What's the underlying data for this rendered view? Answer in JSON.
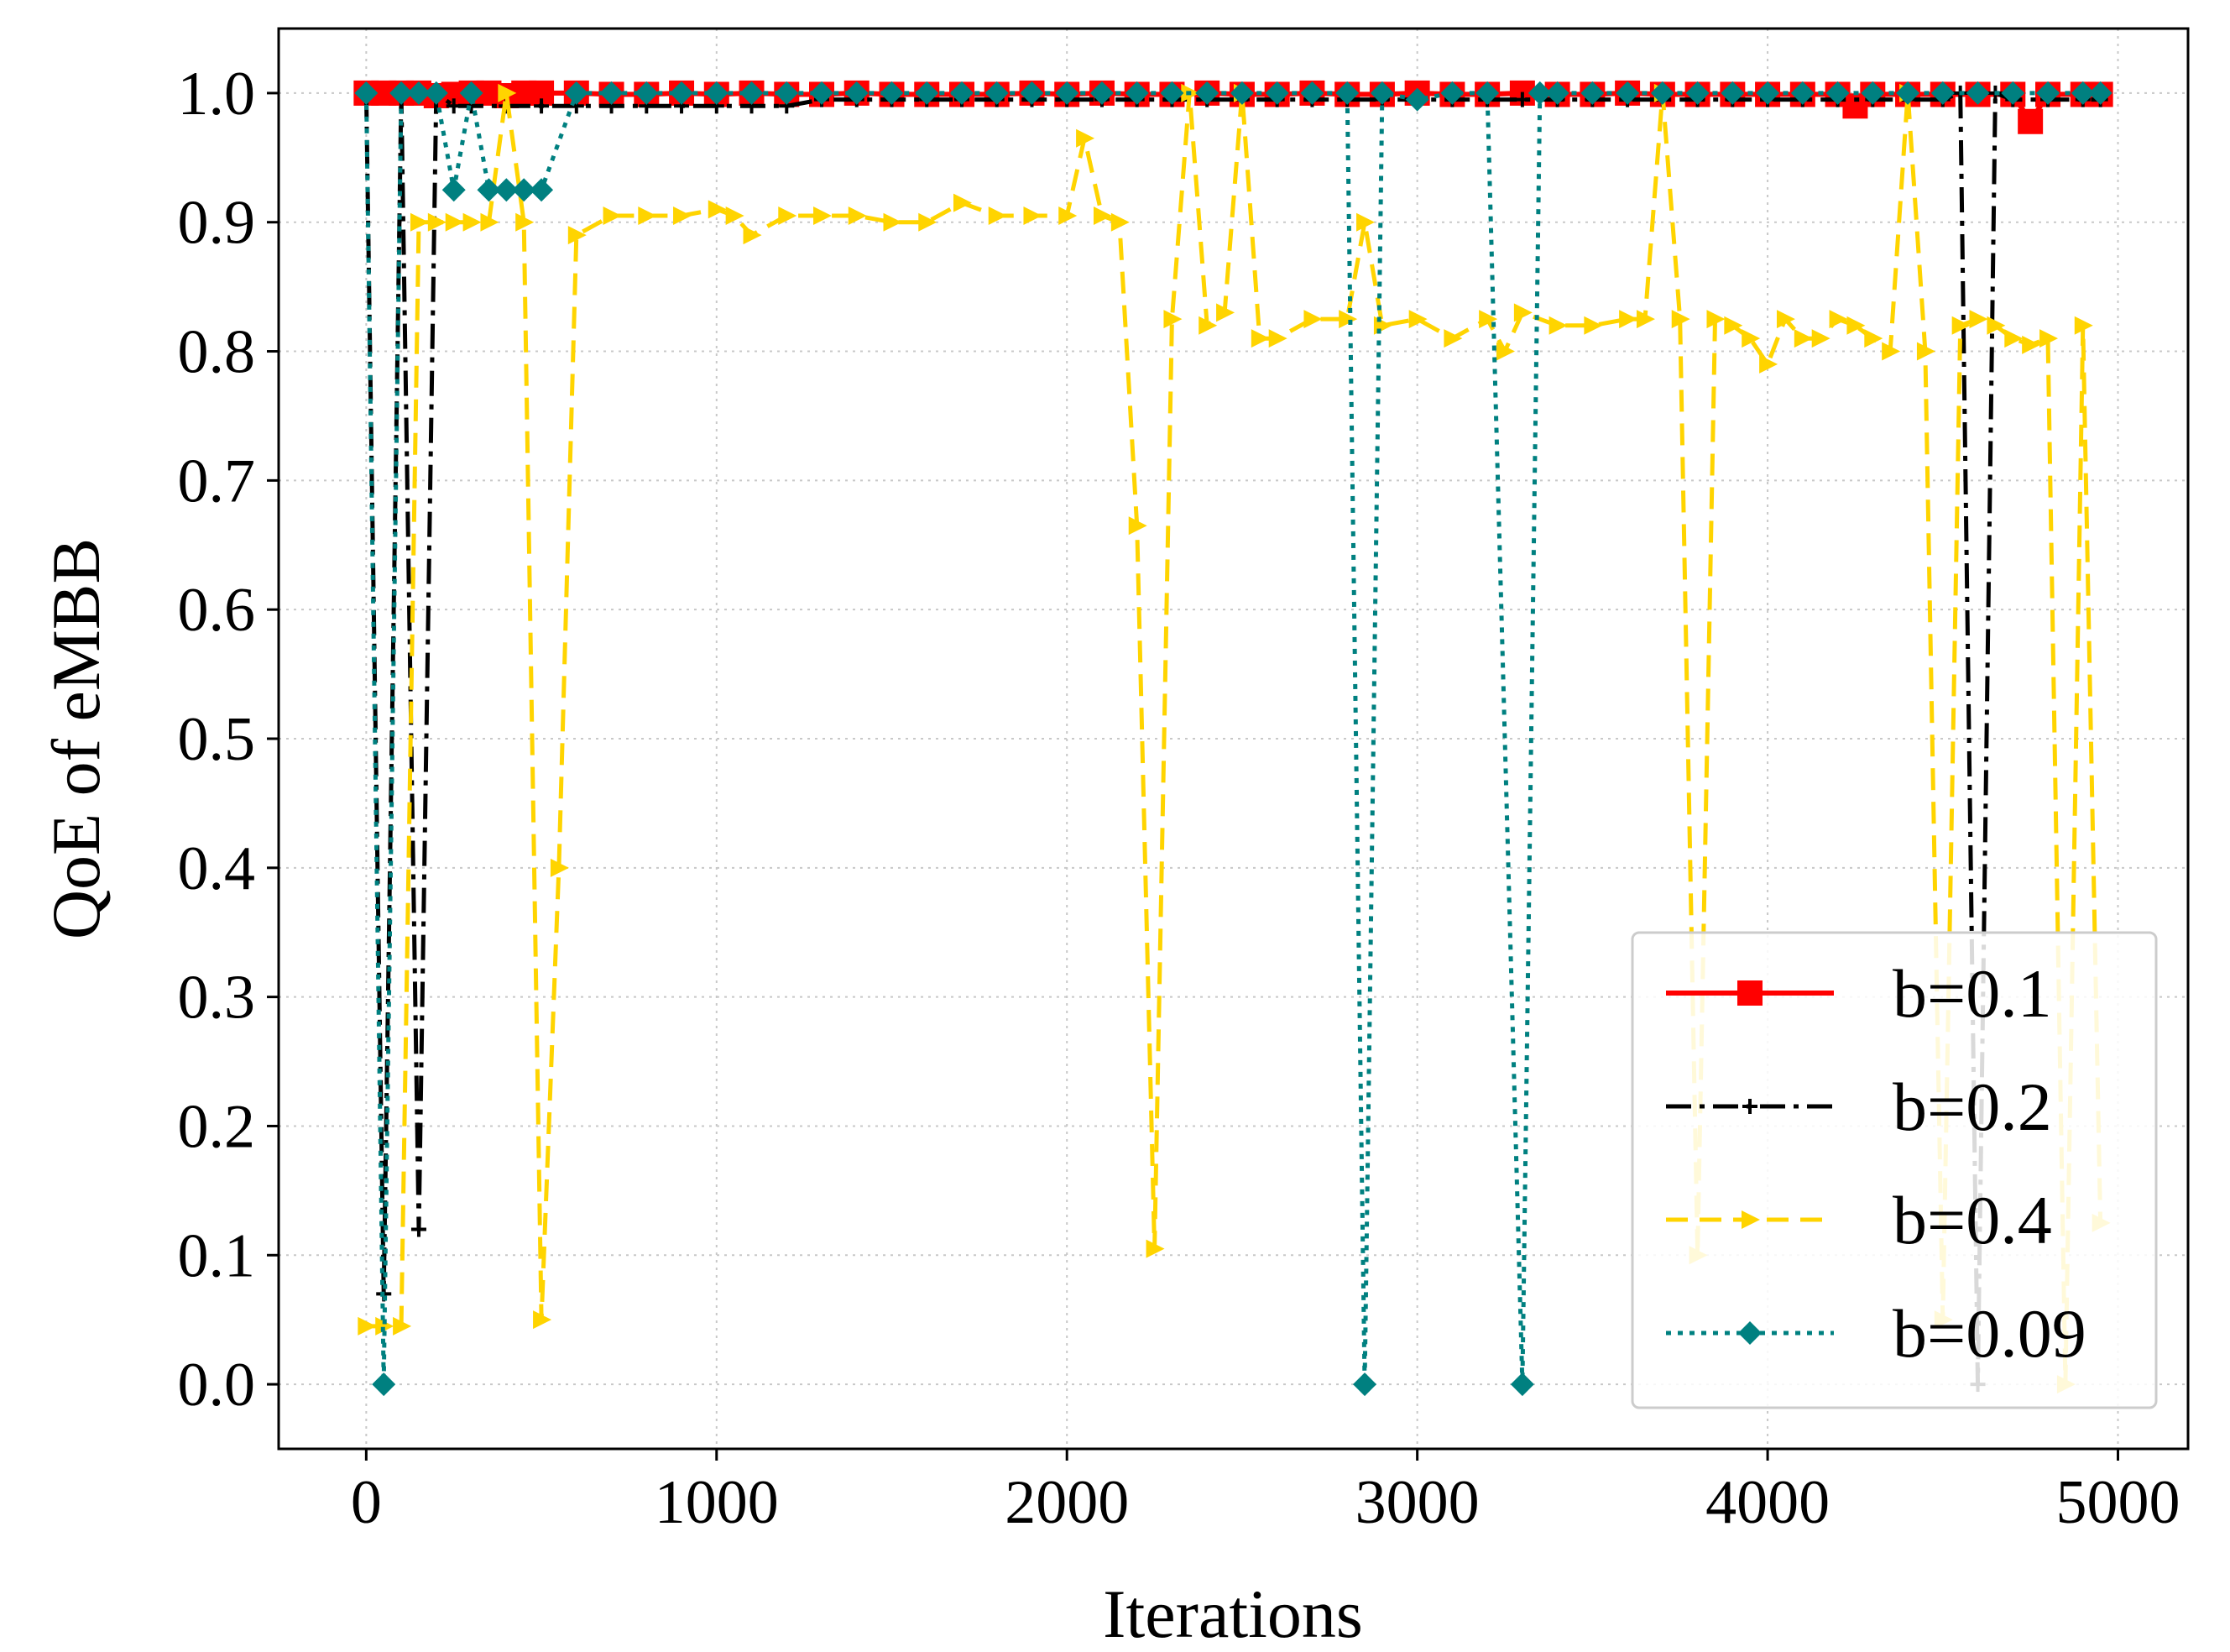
{
  "chart_data": {
    "type": "line",
    "title": "",
    "xlabel": "Iterations",
    "ylabel": "QoE of eMBB",
    "xlim": [
      -250,
      5200
    ],
    "ylim": [
      -0.05,
      1.05
    ],
    "xticks": [
      0,
      1000,
      2000,
      3000,
      4000,
      5000
    ],
    "xtick_labels": [
      "0",
      "1000",
      "2000",
      "3000",
      "4000",
      "5000"
    ],
    "yticks": [
      0.0,
      0.1,
      0.2,
      0.3,
      0.4,
      0.5,
      0.6,
      0.7,
      0.8,
      0.9,
      1.0
    ],
    "ytick_labels": [
      "0.0",
      "0.1",
      "0.2",
      "0.3",
      "0.4",
      "0.5",
      "0.6",
      "0.7",
      "0.8",
      "0.9",
      "1.0"
    ],
    "grid": true,
    "legend_position": "bottom-right",
    "series": [
      {
        "name": "b=0.1",
        "color": "#ff0000",
        "marker": "square",
        "dash": "solid",
        "x": [
          0,
          50,
          100,
          150,
          200,
          250,
          300,
          350,
          400,
          450,
          500,
          600,
          700,
          800,
          900,
          1000,
          1100,
          1200,
          1300,
          1400,
          1500,
          1600,
          1700,
          1800,
          1900,
          2000,
          2100,
          2200,
          2300,
          2400,
          2500,
          2600,
          2700,
          2800,
          2900,
          3000,
          3100,
          3200,
          3300,
          3400,
          3500,
          3600,
          3700,
          3800,
          3900,
          4000,
          4100,
          4200,
          4250,
          4300,
          4400,
          4500,
          4600,
          4700,
          4750,
          4800,
          4900,
          4950
        ],
        "y": [
          1.0,
          1.0,
          1.0,
          1.0,
          0.998,
          0.999,
          1.0,
          1.0,
          0.998,
          1.0,
          1.0,
          1.0,
          0.999,
          0.999,
          1.0,
          0.999,
          1.0,
          0.999,
          0.999,
          1.0,
          0.999,
          0.999,
          0.999,
          0.999,
          1.0,
          0.999,
          1.0,
          0.999,
          0.999,
          1.0,
          0.999,
          0.999,
          1.0,
          0.999,
          0.999,
          1.0,
          0.999,
          0.999,
          1.0,
          0.999,
          0.999,
          1.0,
          0.999,
          0.999,
          0.999,
          0.999,
          0.999,
          0.999,
          0.99,
          0.999,
          0.999,
          0.999,
          0.999,
          0.999,
          0.978,
          0.999,
          0.999,
          0.999
        ]
      },
      {
        "name": "b=0.2",
        "color": "#000000",
        "marker": "plus",
        "dash": "dashdot",
        "x": [
          0,
          50,
          100,
          150,
          200,
          250,
          300,
          400,
          500,
          600,
          700,
          800,
          900,
          1000,
          1100,
          1200,
          1300,
          1400,
          1500,
          1600,
          1700,
          1800,
          1900,
          2000,
          2100,
          2200,
          2300,
          2400,
          2500,
          2600,
          2700,
          2800,
          2900,
          3000,
          3100,
          3200,
          3300,
          3400,
          3500,
          3600,
          3700,
          3800,
          3900,
          4000,
          4100,
          4200,
          4300,
          4400,
          4500,
          4550,
          4600,
          4650,
          4700,
          4800,
          4900,
          4950
        ],
        "y": [
          1.0,
          0.07,
          1.0,
          0.12,
          1.0,
          0.99,
          0.99,
          0.99,
          0.99,
          0.99,
          0.99,
          0.99,
          0.99,
          0.99,
          0.99,
          0.99,
          0.995,
          0.995,
          0.995,
          0.995,
          0.995,
          0.995,
          0.995,
          0.995,
          0.995,
          0.995,
          0.995,
          0.995,
          0.995,
          0.995,
          0.995,
          0.995,
          0.995,
          0.995,
          0.995,
          0.995,
          0.995,
          0.995,
          0.995,
          0.995,
          0.995,
          0.995,
          0.995,
          0.995,
          0.995,
          0.995,
          0.995,
          0.995,
          0.995,
          1.0,
          0.0,
          1.0,
          0.995,
          0.995,
          0.995,
          0.995
        ]
      },
      {
        "name": "b=0.4",
        "color": "#ffd400",
        "marker": "triangle-right",
        "dash": "dashed",
        "x": [
          0,
          50,
          100,
          150,
          200,
          250,
          300,
          350,
          400,
          450,
          500,
          550,
          600,
          700,
          800,
          900,
          1000,
          1050,
          1100,
          1200,
          1300,
          1400,
          1500,
          1600,
          1700,
          1800,
          1900,
          2000,
          2050,
          2100,
          2150,
          2200,
          2250,
          2300,
          2350,
          2400,
          2450,
          2500,
          2550,
          2600,
          2700,
          2800,
          2850,
          2900,
          3000,
          3100,
          3200,
          3250,
          3300,
          3400,
          3500,
          3600,
          3650,
          3700,
          3750,
          3800,
          3850,
          3900,
          3950,
          4000,
          4050,
          4100,
          4150,
          4200,
          4250,
          4300,
          4350,
          4400,
          4450,
          4500,
          4550,
          4600,
          4650,
          4700,
          4750,
          4800,
          4850,
          4900,
          4950
        ],
        "y": [
          0.045,
          0.045,
          0.045,
          0.9,
          0.9,
          0.9,
          0.9,
          0.9,
          1.0,
          0.9,
          0.05,
          0.4,
          0.89,
          0.905,
          0.905,
          0.905,
          0.91,
          0.905,
          0.89,
          0.905,
          0.905,
          0.905,
          0.9,
          0.9,
          0.915,
          0.905,
          0.905,
          0.905,
          0.965,
          0.905,
          0.9,
          0.665,
          0.105,
          0.825,
          1.0,
          0.82,
          0.83,
          1.0,
          0.81,
          0.81,
          0.825,
          0.825,
          0.9,
          0.82,
          0.825,
          0.81,
          0.825,
          0.8,
          0.83,
          0.82,
          0.82,
          0.825,
          0.825,
          1.0,
          0.825,
          0.1,
          0.825,
          0.82,
          0.81,
          0.79,
          0.825,
          0.81,
          0.81,
          0.825,
          0.82,
          0.81,
          0.8,
          1.0,
          0.8,
          0.05,
          0.82,
          0.825,
          0.82,
          0.81,
          0.805,
          0.81,
          0.0,
          0.82,
          0.125
        ]
      },
      {
        "name": "b=0.09",
        "color": "#008080",
        "marker": "diamond",
        "dash": "dotted",
        "x": [
          0,
          50,
          100,
          150,
          200,
          250,
          300,
          350,
          400,
          450,
          500,
          600,
          700,
          800,
          900,
          1000,
          1100,
          1200,
          1300,
          1400,
          1500,
          1600,
          1700,
          1800,
          1900,
          2000,
          2100,
          2200,
          2300,
          2400,
          2500,
          2600,
          2700,
          2800,
          2850,
          2900,
          3000,
          3100,
          3200,
          3300,
          3350,
          3400,
          3500,
          3600,
          3700,
          3800,
          3900,
          4000,
          4100,
          4200,
          4300,
          4400,
          4500,
          4600,
          4700,
          4800,
          4900,
          4950
        ],
        "y": [
          1.0,
          0.0,
          1.0,
          1.0,
          1.0,
          0.925,
          1.0,
          0.925,
          0.925,
          0.925,
          0.925,
          1.0,
          1.0,
          1.0,
          1.0,
          1.0,
          1.0,
          1.0,
          1.0,
          1.0,
          1.0,
          1.0,
          1.0,
          1.0,
          1.0,
          1.0,
          1.0,
          1.0,
          1.0,
          1.0,
          1.0,
          1.0,
          1.0,
          1.0,
          0.0,
          1.0,
          0.995,
          1.0,
          1.0,
          0.0,
          1.0,
          1.0,
          1.0,
          1.0,
          1.0,
          1.0,
          1.0,
          1.0,
          1.0,
          1.0,
          1.0,
          1.0,
          1.0,
          1.0,
          1.0,
          1.0,
          1.0,
          1.0
        ]
      }
    ]
  }
}
